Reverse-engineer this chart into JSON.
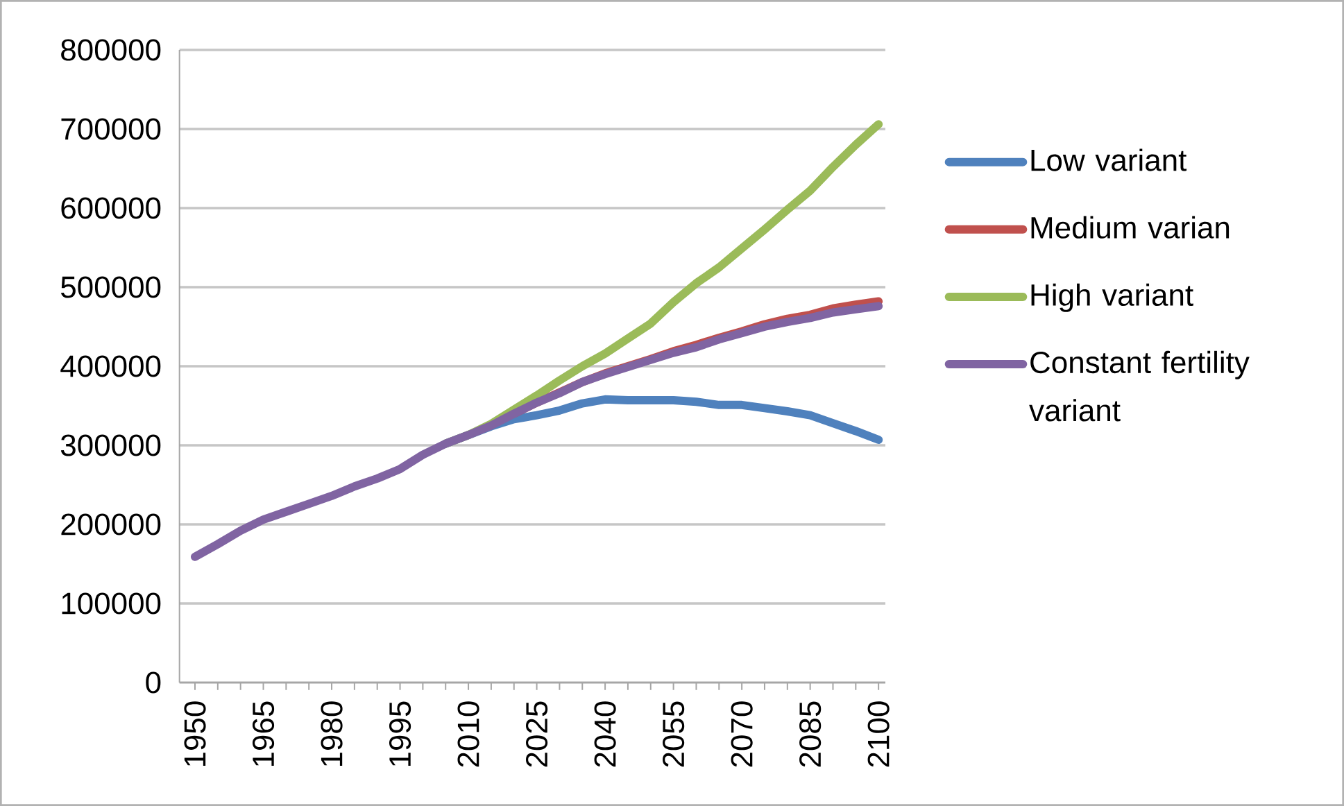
{
  "chart_data": {
    "type": "line",
    "categories": [
      "1950",
      null,
      null,
      "1965",
      null,
      null,
      "1980",
      null,
      null,
      "1995",
      null,
      null,
      "2010",
      null,
      null,
      "2025",
      null,
      null,
      "2040",
      null,
      null,
      "2055",
      null,
      null,
      "2070",
      null,
      null,
      "2085",
      null,
      null,
      "2100"
    ],
    "series": [
      {
        "name": "Low variant",
        "color": "#4f81bd",
        "values": [
          null,
          null,
          null,
          null,
          null,
          null,
          null,
          null,
          null,
          null,
          null,
          302000,
          313000,
          324000,
          333000,
          338000,
          344000,
          353000,
          358000,
          357000,
          357000,
          357000,
          355000,
          351000,
          351000,
          347000,
          343000,
          338000,
          328000,
          318000,
          307000
        ]
      },
      {
        "name": "Medium varian",
        "color": "#c0504d",
        "values": [
          null,
          null,
          null,
          null,
          null,
          null,
          null,
          null,
          null,
          null,
          null,
          null,
          null,
          null,
          340000,
          354000,
          367000,
          380000,
          391000,
          400000,
          409000,
          419000,
          427000,
          436000,
          444000,
          453000,
          460000,
          465000,
          473000,
          478000,
          482000
        ]
      },
      {
        "name": "High variant",
        "color": "#9bbb59",
        "values": [
          null,
          null,
          null,
          null,
          null,
          null,
          null,
          null,
          null,
          null,
          null,
          302000,
          313000,
          327000,
          345000,
          363000,
          382000,
          400000,
          416000,
          435000,
          454000,
          481000,
          505000,
          525000,
          549000,
          573000,
          598000,
          622000,
          652000,
          680000,
          706000
        ]
      },
      {
        "name": "Constant fertility variant",
        "color": "#8064a2",
        "values": [
          159000,
          175000,
          192000,
          206000,
          216000,
          226000,
          236000,
          248000,
          258000,
          270000,
          288000,
          302000,
          313000,
          325000,
          340000,
          354000,
          366000,
          380000,
          390000,
          399000,
          408000,
          417000,
          424000,
          434000,
          442000,
          450000,
          456000,
          461000,
          468000,
          472000,
          476000
        ]
      }
    ],
    "ylim": [
      0,
      800000
    ],
    "yticks": [
      0,
      100000,
      200000,
      300000,
      400000,
      500000,
      600000,
      700000,
      800000
    ],
    "grid": "y",
    "legend": "right",
    "marker": "none",
    "line_style": "solid"
  }
}
